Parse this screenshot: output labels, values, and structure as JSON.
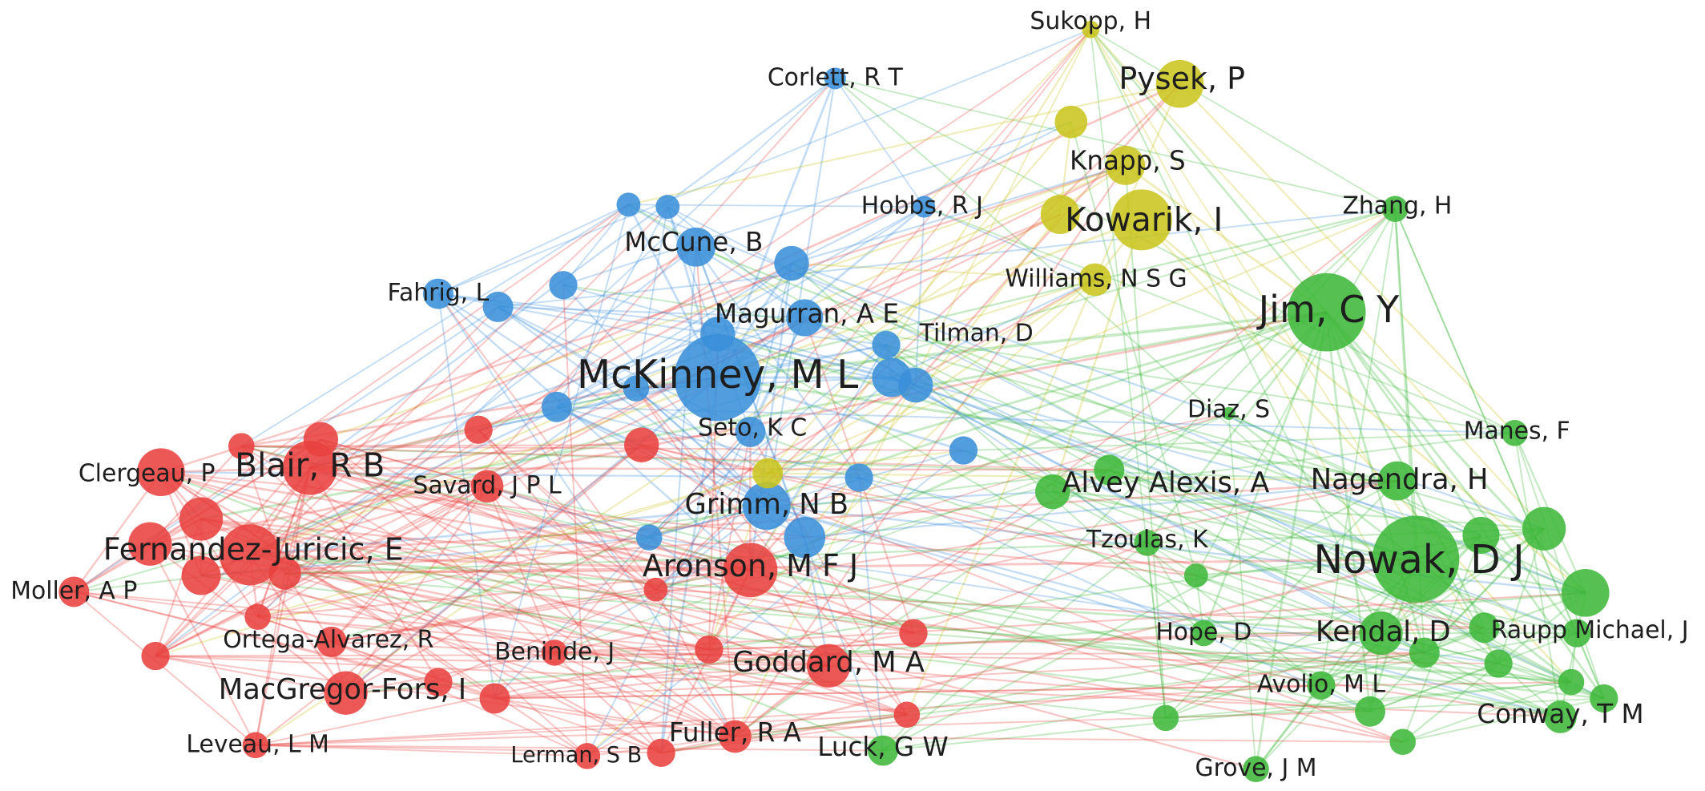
{
  "nodes": [
    {
      "label": "McKinney, M L"
    },
    {
      "label": "Corlett, R T"
    },
    {
      "label": "Hobbs, R J"
    },
    {
      "label": "McCune, B"
    },
    {
      "label": "Fahrig, L"
    },
    {
      "label": "Magurran, A E"
    },
    {
      "label": "Tilman, D"
    },
    {
      "label": "Seto, K C"
    },
    {
      "label": "Grimm, N B"
    },
    {
      "label": "Sukopp, H"
    },
    {
      "label": "Pysek, P"
    },
    {
      "label": "Knapp, S"
    },
    {
      "label": "Kowarik, I"
    },
    {
      "label": "Williams, N S G"
    },
    {
      "label": "Zhang, H"
    },
    {
      "label": "Jim, C Y"
    },
    {
      "label": "Diaz, S"
    },
    {
      "label": "Manes, F"
    },
    {
      "label": "Alvey Alexis, A"
    },
    {
      "label": "Nagendra, H"
    },
    {
      "label": "Tzoulas, K"
    },
    {
      "label": "Nowak, D J"
    },
    {
      "label": "Hope, D"
    },
    {
      "label": "Kendal, D"
    },
    {
      "label": "Raupp Michael, J"
    },
    {
      "label": "Avolio, M L"
    },
    {
      "label": "Conway, T M"
    },
    {
      "label": "Grove, J M"
    },
    {
      "label": "Luck, G W"
    },
    {
      "label": "Clergeau, P"
    },
    {
      "label": "Blair, R B"
    },
    {
      "label": "Savard, J P L"
    },
    {
      "label": "Fernandez-Juricic, E"
    },
    {
      "label": "Moller, A P"
    },
    {
      "label": "Aronson, M F J"
    },
    {
      "label": "Ortega-Alvarez, R"
    },
    {
      "label": "Beninde, J"
    },
    {
      "label": "Goddard, M A"
    },
    {
      "label": "MacGregor-Fors, I"
    },
    {
      "label": "Fuller, R A"
    },
    {
      "label": "Leveau, L M"
    },
    {
      "label": "Lerman, S B"
    }
  ]
}
